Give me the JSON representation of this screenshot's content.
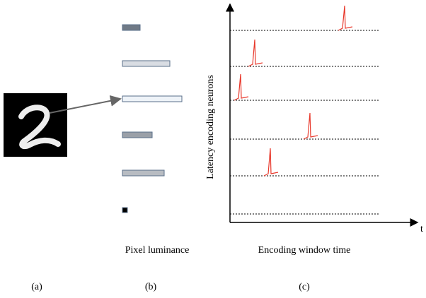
{
  "panels": {
    "b": {
      "label": "Pixel luminance",
      "caption": "(b)"
    },
    "c": {
      "x_label": "Encoding window time",
      "y_label": "Latency encoding neurons",
      "axis_end": "t",
      "caption": "(c)"
    },
    "a": {
      "caption": "(a)"
    }
  }
}
